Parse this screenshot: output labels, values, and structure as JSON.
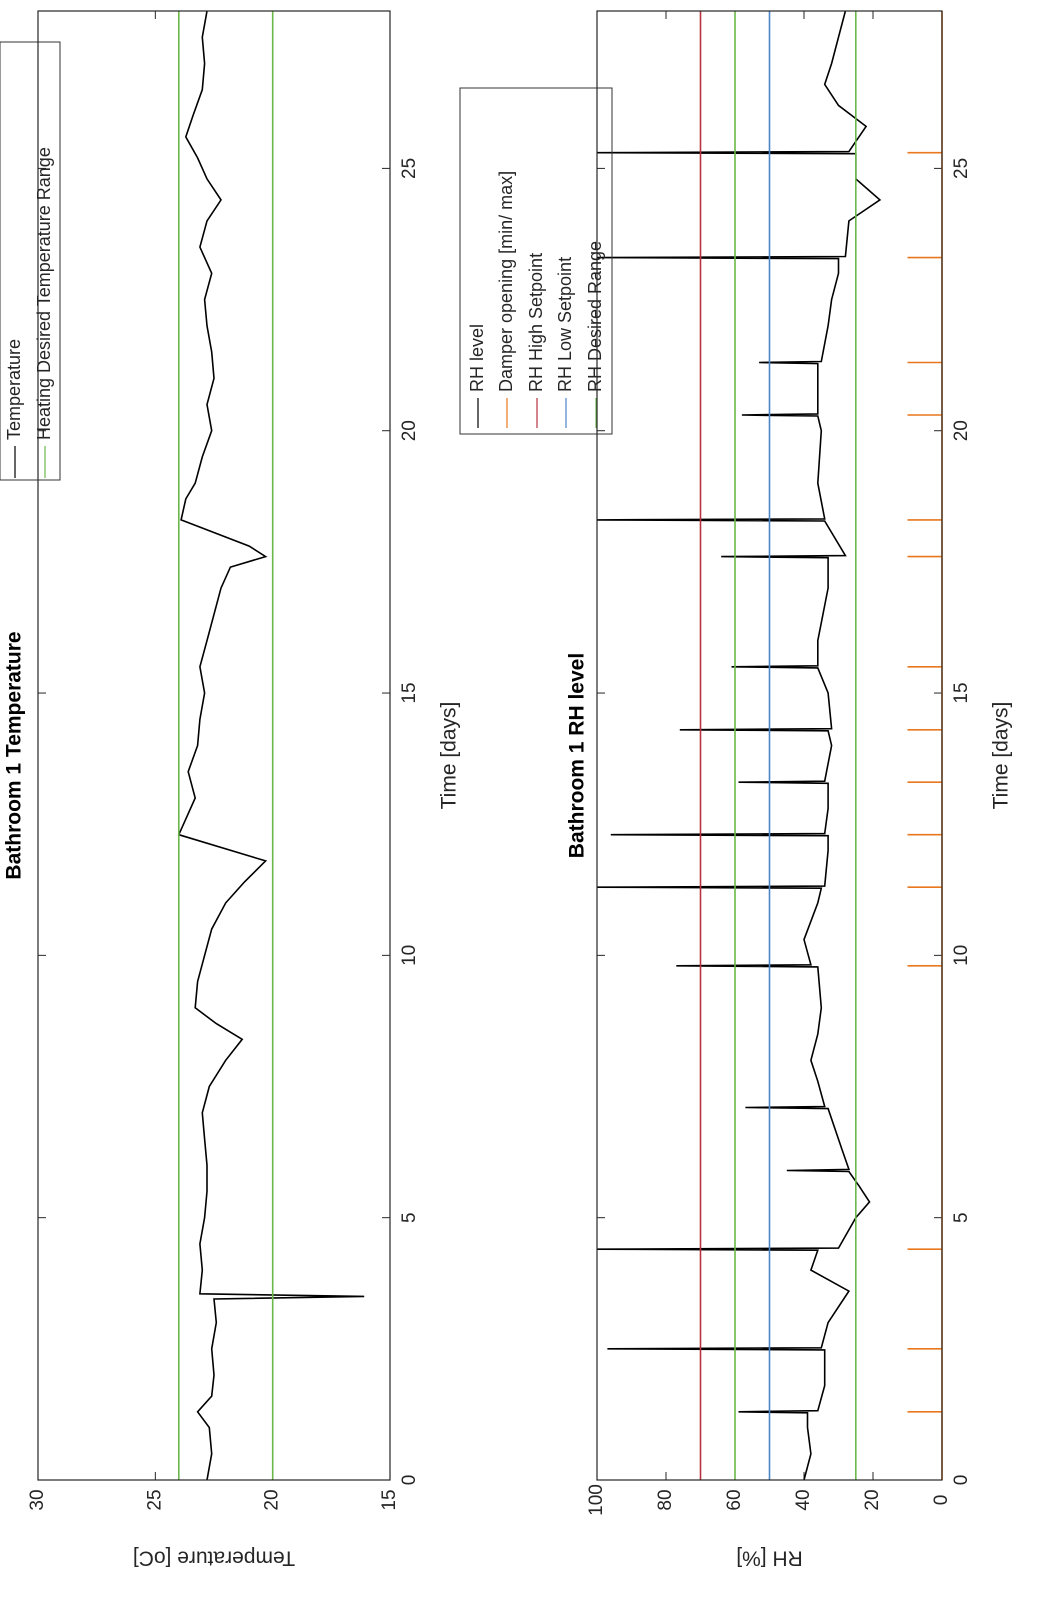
{
  "chart_data": [
    {
      "type": "line",
      "title": "Bathroom 1 Temperature",
      "xlabel": "Time [days]",
      "ylabel": "Temperature [oC]",
      "xlim": [
        0,
        28
      ],
      "xticks": [
        0,
        5,
        10,
        15,
        20,
        25
      ],
      "ylim": [
        15,
        30
      ],
      "yticks": [
        15,
        20,
        25,
        30
      ],
      "series": [
        {
          "name": "Temperature",
          "color": "#000000",
          "x": [
            0,
            0.5,
            1,
            1.3,
            1.6,
            2,
            2.5,
            3,
            3.45,
            3.5,
            3.55,
            4,
            4.5,
            5,
            5.5,
            6,
            6.5,
            7,
            7.5,
            8,
            8.4,
            8.7,
            9,
            9.5,
            10,
            10.5,
            11,
            11.4,
            11.8,
            12.3,
            12.7,
            13,
            13.5,
            14,
            14.5,
            15,
            15.5,
            16,
            16.5,
            17,
            17.4,
            17.6,
            17.8,
            18.3,
            18.7,
            19,
            19.5,
            20,
            20.5,
            21,
            21.5,
            22,
            22.5,
            23,
            23.5,
            24,
            24.4,
            24.8,
            25.2,
            25.6,
            26,
            26.5,
            27,
            27.5,
            28
          ],
          "values": [
            22.8,
            22.6,
            22.7,
            23.2,
            22.6,
            22.5,
            22.6,
            22.4,
            22.5,
            16.1,
            23.1,
            23.0,
            23.1,
            22.9,
            22.8,
            22.8,
            22.9,
            23.0,
            22.7,
            22.0,
            21.3,
            22.4,
            23.3,
            23.2,
            22.9,
            22.6,
            22.0,
            21.2,
            20.3,
            24.0,
            23.6,
            23.3,
            23.6,
            23.2,
            23.1,
            22.9,
            23.1,
            22.8,
            22.5,
            22.2,
            21.8,
            20.3,
            21.0,
            23.9,
            23.7,
            23.3,
            23.0,
            22.6,
            22.8,
            22.5,
            22.6,
            22.8,
            22.9,
            22.6,
            23.1,
            22.8,
            22.2,
            22.8,
            23.2,
            23.7,
            23.4,
            23.0,
            22.9,
            23.0,
            22.8
          ]
        },
        {
          "name": "Heating Desired Temperature Range",
          "color": "#6bb74a",
          "x": [
            0,
            28,
            0,
            0,
            28
          ],
          "values": [
            24,
            24,
            null,
            20,
            20
          ]
        }
      ]
    },
    {
      "type": "line",
      "title": "Bathroom 1 RH level",
      "xlabel": "Time [days]",
      "ylabel": "RH [%]",
      "xlim": [
        0,
        28
      ],
      "xticks": [
        0,
        5,
        10,
        15,
        20,
        25
      ],
      "ylim": [
        0,
        100
      ],
      "yticks": [
        0,
        20,
        40,
        60,
        80,
        100
      ],
      "series": [
        {
          "name": "RH level",
          "color": "#000000",
          "x": [
            0,
            0.5,
            1,
            1.28,
            1.3,
            1.32,
            1.8,
            2.48,
            2.5,
            2.52,
            3,
            3.6,
            4,
            4.38,
            4.4,
            4.42,
            5,
            5.3,
            5.6,
            5.88,
            5.9,
            5.92,
            6.3,
            7.08,
            7.1,
            7.12,
            7.6,
            8,
            8.5,
            9,
            9.78,
            9.8,
            9.82,
            10.3,
            11,
            11.28,
            11.3,
            11.32,
            12,
            12.28,
            12.3,
            12.32,
            12.8,
            13.28,
            13.3,
            13.32,
            14,
            14.28,
            14.3,
            14.32,
            15,
            15.48,
            15.5,
            15.52,
            16,
            17,
            17.58,
            17.6,
            17.62,
            18.28,
            18.3,
            18.32,
            19,
            20,
            20.28,
            20.3,
            20.32,
            21,
            21.28,
            21.3,
            21.32,
            22,
            22.5,
            23,
            23.28,
            23.3,
            23.32,
            24,
            24.4,
            24.8,
            25.28,
            25.3,
            25.32,
            25.8,
            26.2,
            26.6,
            27,
            27.5,
            28
          ],
          "values": [
            40,
            38,
            39,
            39,
            59,
            36,
            34,
            34,
            97,
            35,
            33,
            27,
            38,
            36,
            100,
            30,
            25,
            21,
            24,
            27,
            45,
            27,
            29,
            33,
            57,
            34,
            36,
            38,
            36,
            35,
            36,
            77,
            38,
            40,
            36,
            35,
            100,
            34,
            33,
            33,
            96,
            34,
            33,
            33,
            59,
            34,
            32,
            33,
            76,
            32,
            33,
            36,
            61,
            36,
            36,
            33,
            33,
            64,
            28,
            34,
            100,
            34,
            36,
            35,
            36,
            58,
            36,
            36,
            36,
            53,
            35,
            33,
            32,
            30,
            30,
            100,
            28,
            27,
            18,
            25,
            25,
            100,
            27,
            22,
            30,
            34,
            32,
            30,
            28
          ]
        },
        {
          "name": "Damper opening [min/ max]",
          "color": "#e8771e",
          "x": [
            0,
            1.3,
            1.3,
            1.3,
            2.5,
            2.5,
            2.5,
            4.4,
            4.4,
            4.4,
            9.8,
            9.8,
            9.8,
            11.3,
            11.3,
            11.3,
            12.3,
            12.3,
            12.3,
            13.3,
            13.3,
            13.3,
            14.3,
            14.3,
            14.3,
            15.5,
            15.5,
            15.5,
            17.6,
            17.6,
            17.6,
            18.3,
            18.3,
            18.3,
            20.3,
            20.3,
            20.3,
            21.3,
            21.3,
            21.3,
            23.3,
            23.3,
            23.3,
            25.3,
            25.3,
            25.3,
            28
          ],
          "values": [
            0,
            0,
            10,
            0,
            0,
            10,
            0,
            0,
            10,
            0,
            0,
            10,
            0,
            0,
            10,
            0,
            0,
            10,
            0,
            0,
            10,
            0,
            0,
            10,
            0,
            0,
            10,
            0,
            0,
            10,
            0,
            0,
            10,
            0,
            0,
            10,
            0,
            0,
            10,
            0,
            0,
            10,
            0,
            0,
            10,
            0,
            0
          ]
        },
        {
          "name": "RH High Setpoint",
          "color": "#b83240",
          "x": [
            0,
            28
          ],
          "values": [
            70,
            70
          ]
        },
        {
          "name": "RH Low Setpoint",
          "color": "#4a86c8",
          "x": [
            0,
            28
          ],
          "values": [
            50,
            50
          ]
        },
        {
          "name": "RH Desired Range",
          "color": "#6bb74a",
          "x": [
            0,
            28,
            0,
            0,
            28
          ],
          "values": [
            60,
            60,
            null,
            25,
            25
          ]
        }
      ]
    }
  ]
}
